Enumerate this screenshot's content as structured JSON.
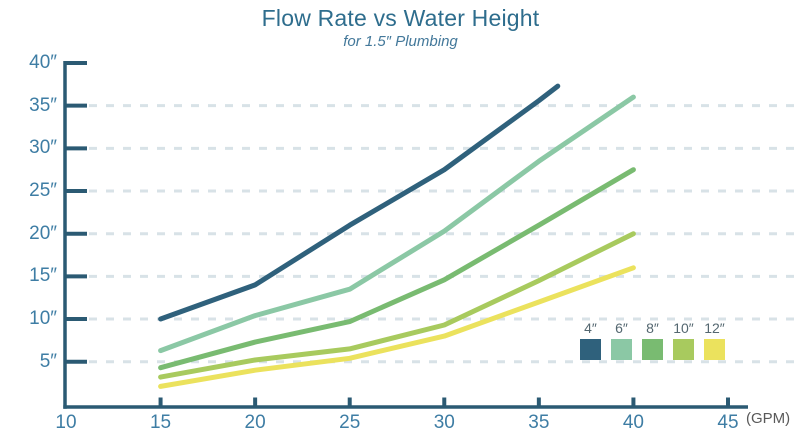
{
  "colors": {
    "title": "#2e6d8d",
    "subtitle": "#43789a",
    "axis": "#2b5a73",
    "tick_label": "#3e7da4",
    "gridline": "#d8e2e7",
    "unit_label": "#595959",
    "legend_label": "#546770",
    "background": "#ffffff"
  },
  "chart_data": {
    "type": "line",
    "title": "Flow Rate vs Water Height",
    "subtitle": "for 1.5″ Plumbing",
    "xlabel": "(GPM)",
    "ylabel": "",
    "xlim": [
      10,
      45
    ],
    "ylim": [
      0,
      40
    ],
    "grid": "dashed horizontal gridlines at 5-inch intervals (5-35)",
    "gridlines_y": [
      5,
      10,
      15,
      20,
      25,
      30,
      35
    ],
    "legend_position": "inside bottom-right",
    "x_ticks": [
      {
        "v": 10,
        "label": "10"
      },
      {
        "v": 15,
        "label": "15"
      },
      {
        "v": 20,
        "label": "20"
      },
      {
        "v": 25,
        "label": "25"
      },
      {
        "v": 30,
        "label": "30"
      },
      {
        "v": 35,
        "label": "35"
      },
      {
        "v": 40,
        "label": "40"
      },
      {
        "v": 45,
        "label": "45"
      }
    ],
    "y_ticks": [
      {
        "v": 40,
        "label": "40″"
      },
      {
        "v": 35,
        "label": "35″"
      },
      {
        "v": 30,
        "label": "30″"
      },
      {
        "v": 25,
        "label": "25″"
      },
      {
        "v": 20,
        "label": "20″"
      },
      {
        "v": 15,
        "label": "15″"
      },
      {
        "v": 10,
        "label": "10″"
      },
      {
        "v": 5,
        "label": "5″"
      }
    ],
    "series": [
      {
        "name": "4″",
        "key": "4in",
        "color": "#2f617c",
        "points": [
          [
            15,
            10
          ],
          [
            20,
            14
          ],
          [
            25,
            21
          ],
          [
            30,
            27.5
          ],
          [
            35,
            35.6
          ],
          [
            36,
            37.3
          ]
        ]
      },
      {
        "name": "6″",
        "key": "6in",
        "color": "#8bc8a5",
        "points": [
          [
            15,
            6.3
          ],
          [
            20,
            10.4
          ],
          [
            25,
            13.5
          ],
          [
            30,
            20.3
          ],
          [
            35,
            28.5
          ],
          [
            40,
            36
          ]
        ]
      },
      {
        "name": "8″",
        "key": "8in",
        "color": "#79bb71",
        "points": [
          [
            15,
            4.3
          ],
          [
            20,
            7.3
          ],
          [
            25,
            9.7
          ],
          [
            30,
            14.6
          ],
          [
            35,
            21
          ],
          [
            40,
            27.5
          ]
        ]
      },
      {
        "name": "10″",
        "key": "10in",
        "color": "#a8ca5e",
        "points": [
          [
            15,
            3.2
          ],
          [
            20,
            5.2
          ],
          [
            25,
            6.5
          ],
          [
            30,
            9.3
          ],
          [
            35,
            14.5
          ],
          [
            40,
            20
          ]
        ]
      },
      {
        "name": "12″",
        "key": "12in",
        "color": "#ebe25d",
        "points": [
          [
            15,
            2.1
          ],
          [
            20,
            4
          ],
          [
            25,
            5.4
          ],
          [
            30,
            8
          ],
          [
            35,
            12
          ],
          [
            40,
            16
          ]
        ]
      }
    ]
  }
}
